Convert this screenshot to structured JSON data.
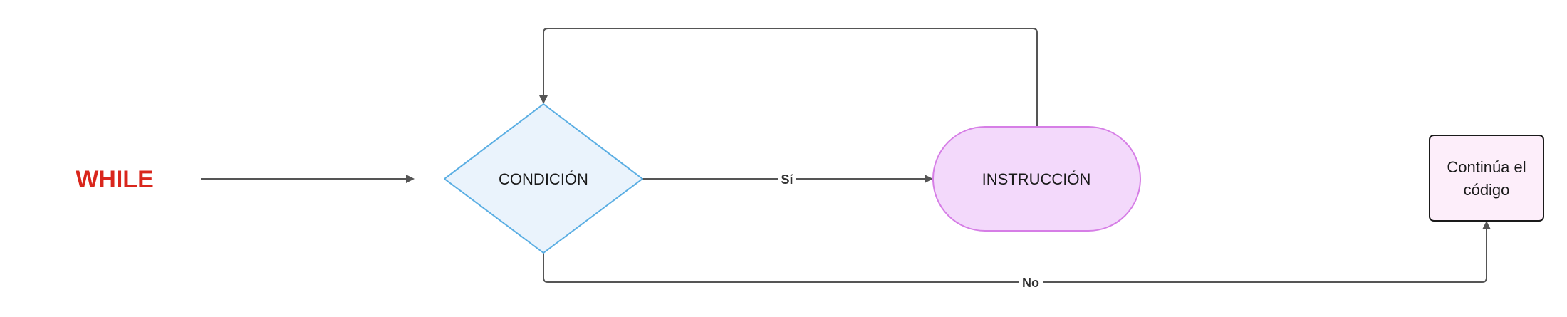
{
  "title": {
    "text": "WHILE",
    "color": "#d9261c"
  },
  "nodes": {
    "condition": {
      "label": "CONDICIÓN",
      "fill": "#eaf3fc",
      "stroke": "#5aaee3"
    },
    "instruction": {
      "label": "INSTRUCCIÓN",
      "fill": "#f3d9fb",
      "stroke": "#d67ee6"
    },
    "continue": {
      "label_line1": "Continúa el",
      "label_line2": "código",
      "fill": "#fdeefa",
      "stroke": "#1a1a1a"
    }
  },
  "edges": {
    "yes_label": "Sí",
    "no_label": "No",
    "color": "#555555"
  }
}
